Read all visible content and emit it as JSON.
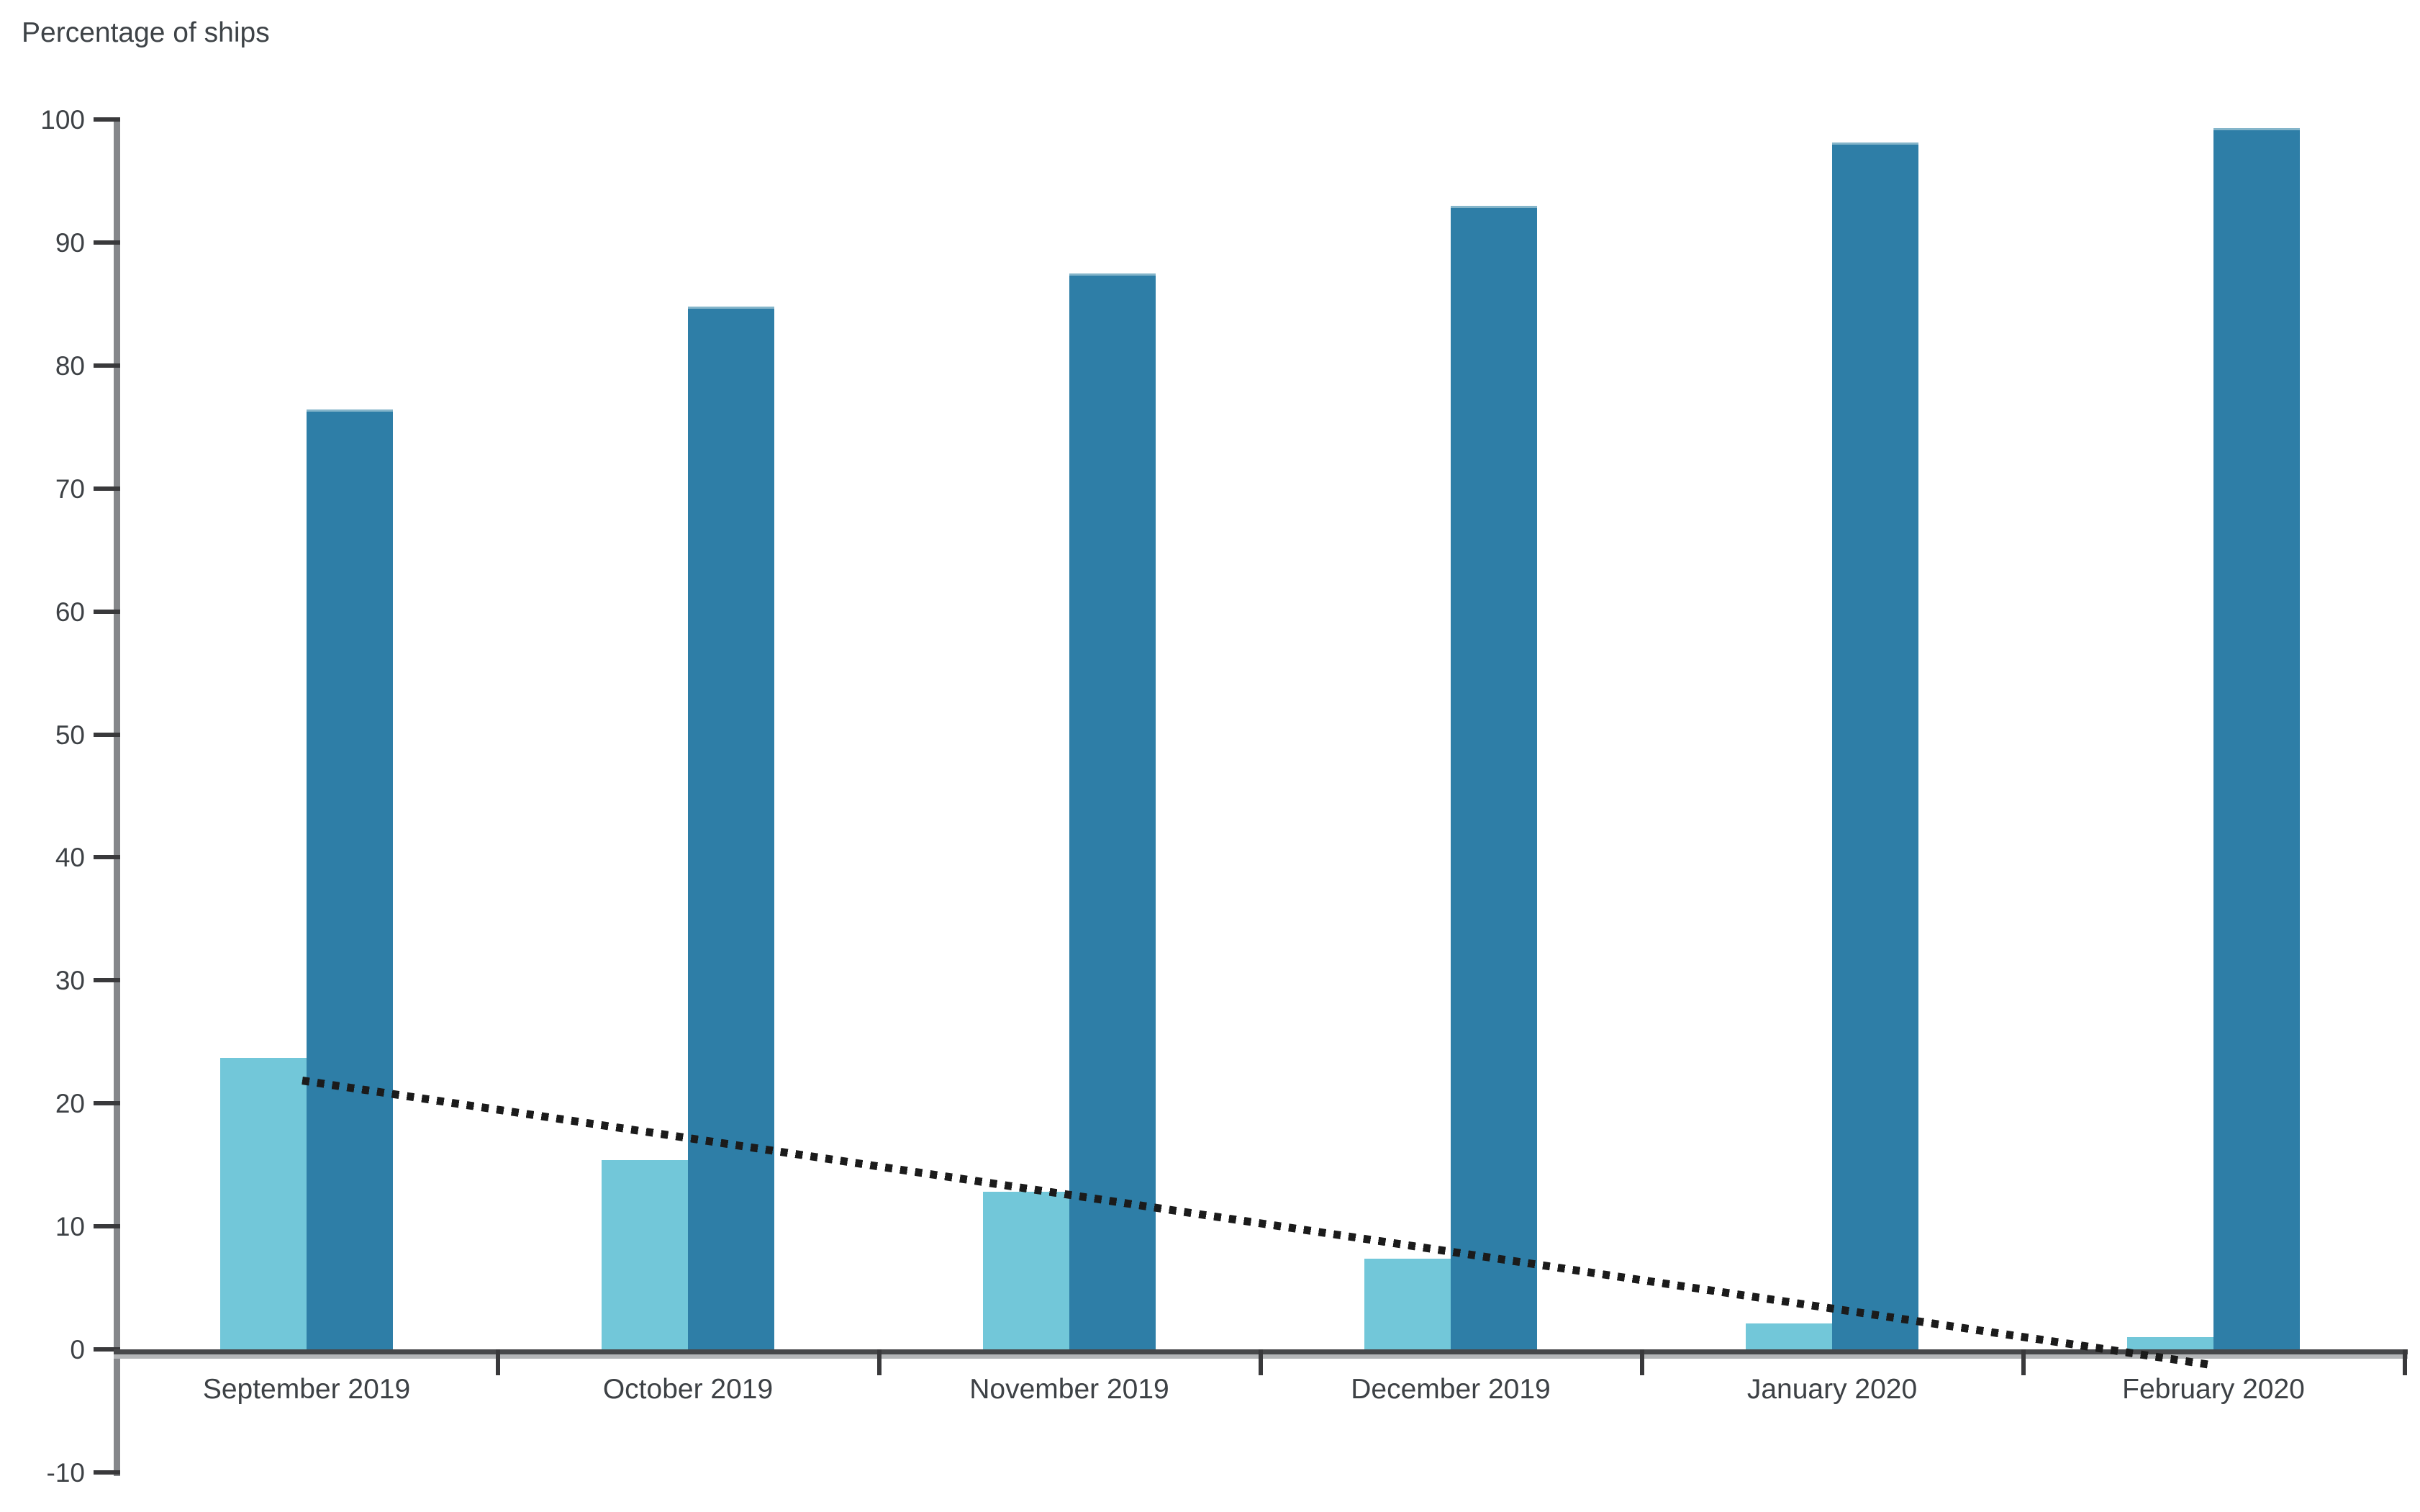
{
  "chart_data": {
    "type": "bar",
    "title": "Percentage of ships",
    "categories": [
      "September 2019",
      "October 2019",
      "November 2019",
      "December 2019",
      "January 2020",
      "February 2020"
    ],
    "series": [
      {
        "name": "light-blue-bars",
        "color": "#72C7D9",
        "values": [
          23.7,
          15.4,
          12.8,
          7.4,
          2.1,
          1.0
        ]
      },
      {
        "name": "dark-blue-bars",
        "color": "#2E7EA7",
        "values": [
          76.4,
          84.8,
          87.5,
          93.0,
          98.1,
          99.3
        ]
      }
    ],
    "trendline": {
      "style": "dotted",
      "color": "#1b1b1b",
      "start_value": 21.9,
      "end_value": -1.2,
      "values_by_category": [
        21.9,
        17.3,
        12.7,
        8.1,
        3.4,
        -1.2
      ]
    },
    "y_axis": {
      "min": -10,
      "max": 100,
      "tick_step": 10,
      "tick_labels": [
        "100",
        "90",
        "80",
        "70",
        "60",
        "50",
        "40",
        "30",
        "20",
        "10",
        "0",
        "-10"
      ]
    },
    "x_axis": {
      "labels": [
        "September 2019",
        "October 2019",
        "November 2019",
        "December 2019",
        "January 2020",
        "February 2020"
      ]
    },
    "grid": false,
    "legend": "none",
    "background": "#ffffff",
    "axis_colors": {
      "axis_line": "#85878a",
      "tick_mark": "#39393b",
      "text": "#3d4145"
    }
  }
}
